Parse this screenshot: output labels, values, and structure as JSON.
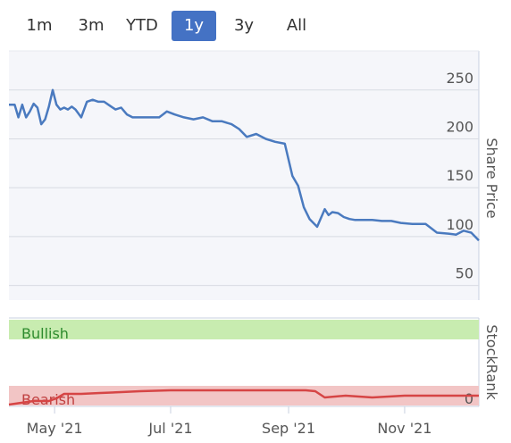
{
  "range_selector": {
    "buttons": [
      "1m",
      "3m",
      "YTD",
      "1y",
      "3y",
      "All"
    ],
    "active": "1y",
    "active_color": "#4472c4"
  },
  "chart_data": [
    {
      "type": "line",
      "ylabel": "Share Price",
      "yticks": [
        50,
        100,
        150,
        200,
        250
      ],
      "ylim": [
        35,
        290
      ],
      "xlim": [
        "2021-04-07",
        "2021-12-10"
      ],
      "xticks": [
        "May '21",
        "Jul '21",
        "Sep '21",
        "Nov '21"
      ],
      "grid": true,
      "line_color": "#4a7abf",
      "series": [
        {
          "x": [
            "2021-04-07",
            "2021-04-10",
            "2021-04-12",
            "2021-04-14",
            "2021-04-16",
            "2021-04-18",
            "2021-04-20",
            "2021-04-22",
            "2021-04-24",
            "2021-04-26",
            "2021-04-28",
            "2021-04-30",
            "2021-05-02",
            "2021-05-04",
            "2021-05-06",
            "2021-05-08",
            "2021-05-10",
            "2021-05-12",
            "2021-05-15",
            "2021-05-18",
            "2021-05-21",
            "2021-05-24",
            "2021-05-27",
            "2021-05-30",
            "2021-06-02",
            "2021-06-05",
            "2021-06-08",
            "2021-06-11",
            "2021-06-14",
            "2021-06-17",
            "2021-06-21",
            "2021-06-25",
            "2021-06-29",
            "2021-07-03",
            "2021-07-08",
            "2021-07-13",
            "2021-07-18",
            "2021-07-23",
            "2021-07-28",
            "2021-08-02",
            "2021-08-06",
            "2021-08-10",
            "2021-08-15",
            "2021-08-20",
            "2021-08-25",
            "2021-08-30",
            "2021-09-03",
            "2021-09-06",
            "2021-09-09",
            "2021-09-12",
            "2021-09-16",
            "2021-09-20",
            "2021-09-22",
            "2021-09-24",
            "2021-09-27",
            "2021-09-30",
            "2021-10-03",
            "2021-10-06",
            "2021-10-10",
            "2021-10-15",
            "2021-10-20",
            "2021-10-25",
            "2021-10-30",
            "2021-11-05",
            "2021-11-12",
            "2021-11-18",
            "2021-11-24",
            "2021-11-28",
            "2021-12-02",
            "2021-12-06",
            "2021-12-10"
          ],
          "y": [
            235,
            235,
            222,
            235,
            222,
            228,
            236,
            232,
            215,
            220,
            233,
            250,
            235,
            230,
            232,
            230,
            233,
            230,
            222,
            238,
            240,
            238,
            238,
            234,
            230,
            232,
            225,
            222,
            222,
            222,
            222,
            222,
            228,
            225,
            222,
            220,
            222,
            218,
            218,
            215,
            210,
            202,
            205,
            200,
            197,
            195,
            162,
            152,
            130,
            118,
            110,
            128,
            122,
            125,
            124,
            120,
            118,
            117,
            117,
            117,
            116,
            116,
            114,
            113,
            113,
            104,
            103,
            102,
            106,
            104,
            96
          ]
        }
      ]
    },
    {
      "type": "area",
      "ylabel": "StockRank",
      "yticks": [
        0
      ],
      "bands": [
        {
          "label": "Bullish",
          "color": "#c8ecb0",
          "text_color": "#2e8b2e"
        },
        {
          "label": "Bearish",
          "color": "#f2c5c5",
          "text_color": "#c04040"
        }
      ],
      "xticks": [
        "May '21",
        "Jul '21",
        "Sep '21",
        "Nov '21"
      ],
      "line_color": "#d64545",
      "series": [
        {
          "x": [
            "2021-04-07",
            "2021-04-20",
            "2021-04-28",
            "2021-05-02",
            "2021-05-06",
            "2021-05-15",
            "2021-05-25",
            "2021-06-05",
            "2021-06-15",
            "2021-07-01",
            "2021-07-15",
            "2021-08-01",
            "2021-08-15",
            "2021-09-01",
            "2021-09-10",
            "2021-09-15",
            "2021-09-20",
            "2021-10-01",
            "2021-10-15",
            "2021-11-01",
            "2021-11-15",
            "2021-12-01",
            "2021-12-10"
          ],
          "y": [
            2,
            6,
            6,
            9,
            14,
            14,
            15,
            16,
            17,
            18,
            18,
            18,
            18,
            18,
            18,
            17,
            10,
            12,
            10,
            12,
            12,
            12,
            12
          ]
        }
      ]
    }
  ]
}
